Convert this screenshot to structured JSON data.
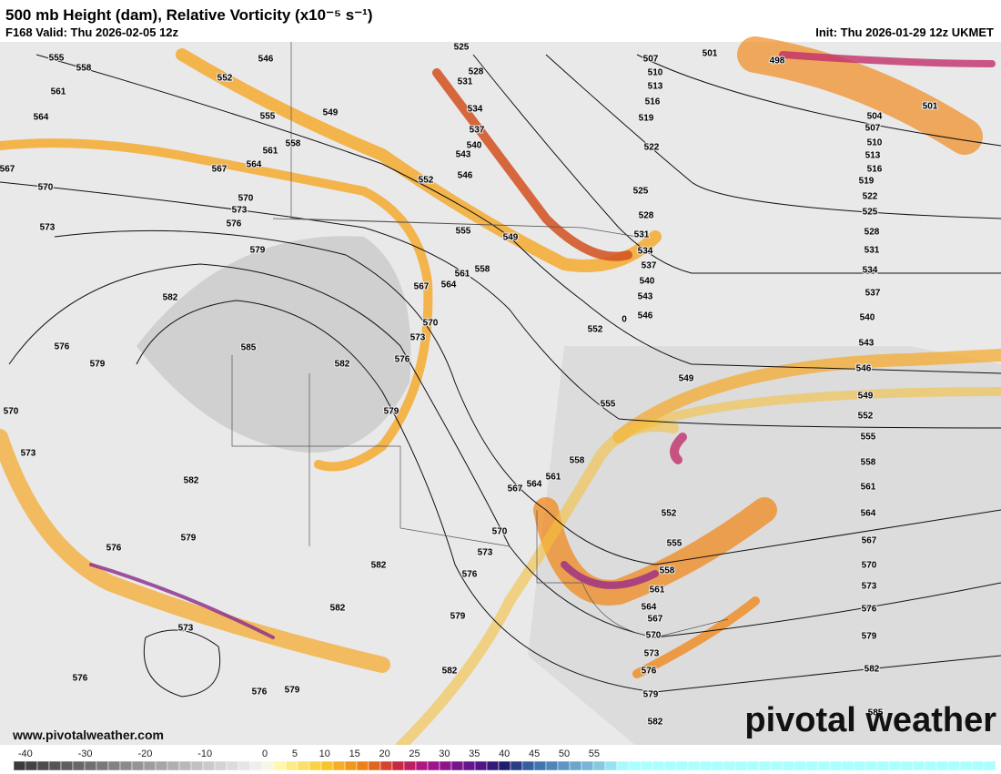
{
  "header": {
    "title": "500 mb Height (dam), Relative Vorticity (x10⁻⁵ s⁻¹)",
    "valid": "F168 Valid: Thu 2026-02-05 12z",
    "init": "Init: Thu 2026-01-29 12z UKMET"
  },
  "contour_labels": [
    555,
    558,
    561,
    564,
    567,
    570,
    573,
    576,
    579,
    570,
    573,
    576,
    579,
    573,
    576,
    576,
    579,
    582,
    582,
    585,
    582,
    579,
    582,
    582,
    582,
    579,
    576,
    573,
    570,
    567,
    564,
    561,
    558,
    555,
    552,
    549,
    546,
    549,
    552,
    555,
    558,
    561,
    564,
    567,
    570,
    573,
    576,
    579,
    552,
    555,
    558,
    561,
    564,
    567,
    570,
    573,
    576,
    525,
    528,
    531,
    534,
    537,
    540,
    543,
    546,
    549,
    522,
    525,
    528,
    531,
    534,
    537,
    540,
    543,
    546,
    507,
    510,
    513,
    516,
    519,
    501,
    498,
    501,
    504,
    507,
    510,
    513,
    516,
    519,
    522,
    525,
    528,
    531,
    534,
    537,
    540,
    543,
    546,
    549,
    552,
    555,
    558,
    561,
    564,
    567,
    570,
    573,
    576,
    579,
    582,
    585,
    552,
    555,
    558,
    561,
    564,
    567,
    570,
    573,
    576,
    579,
    582,
    0
  ],
  "colorbar": {
    "ticks": [
      -40,
      -30,
      -20,
      -10,
      0,
      5,
      10,
      15,
      20,
      25,
      30,
      35,
      40,
      45,
      50,
      55
    ]
  },
  "footer": {
    "website": "www.pivotalweather.com",
    "logo": "pivotal weather"
  }
}
